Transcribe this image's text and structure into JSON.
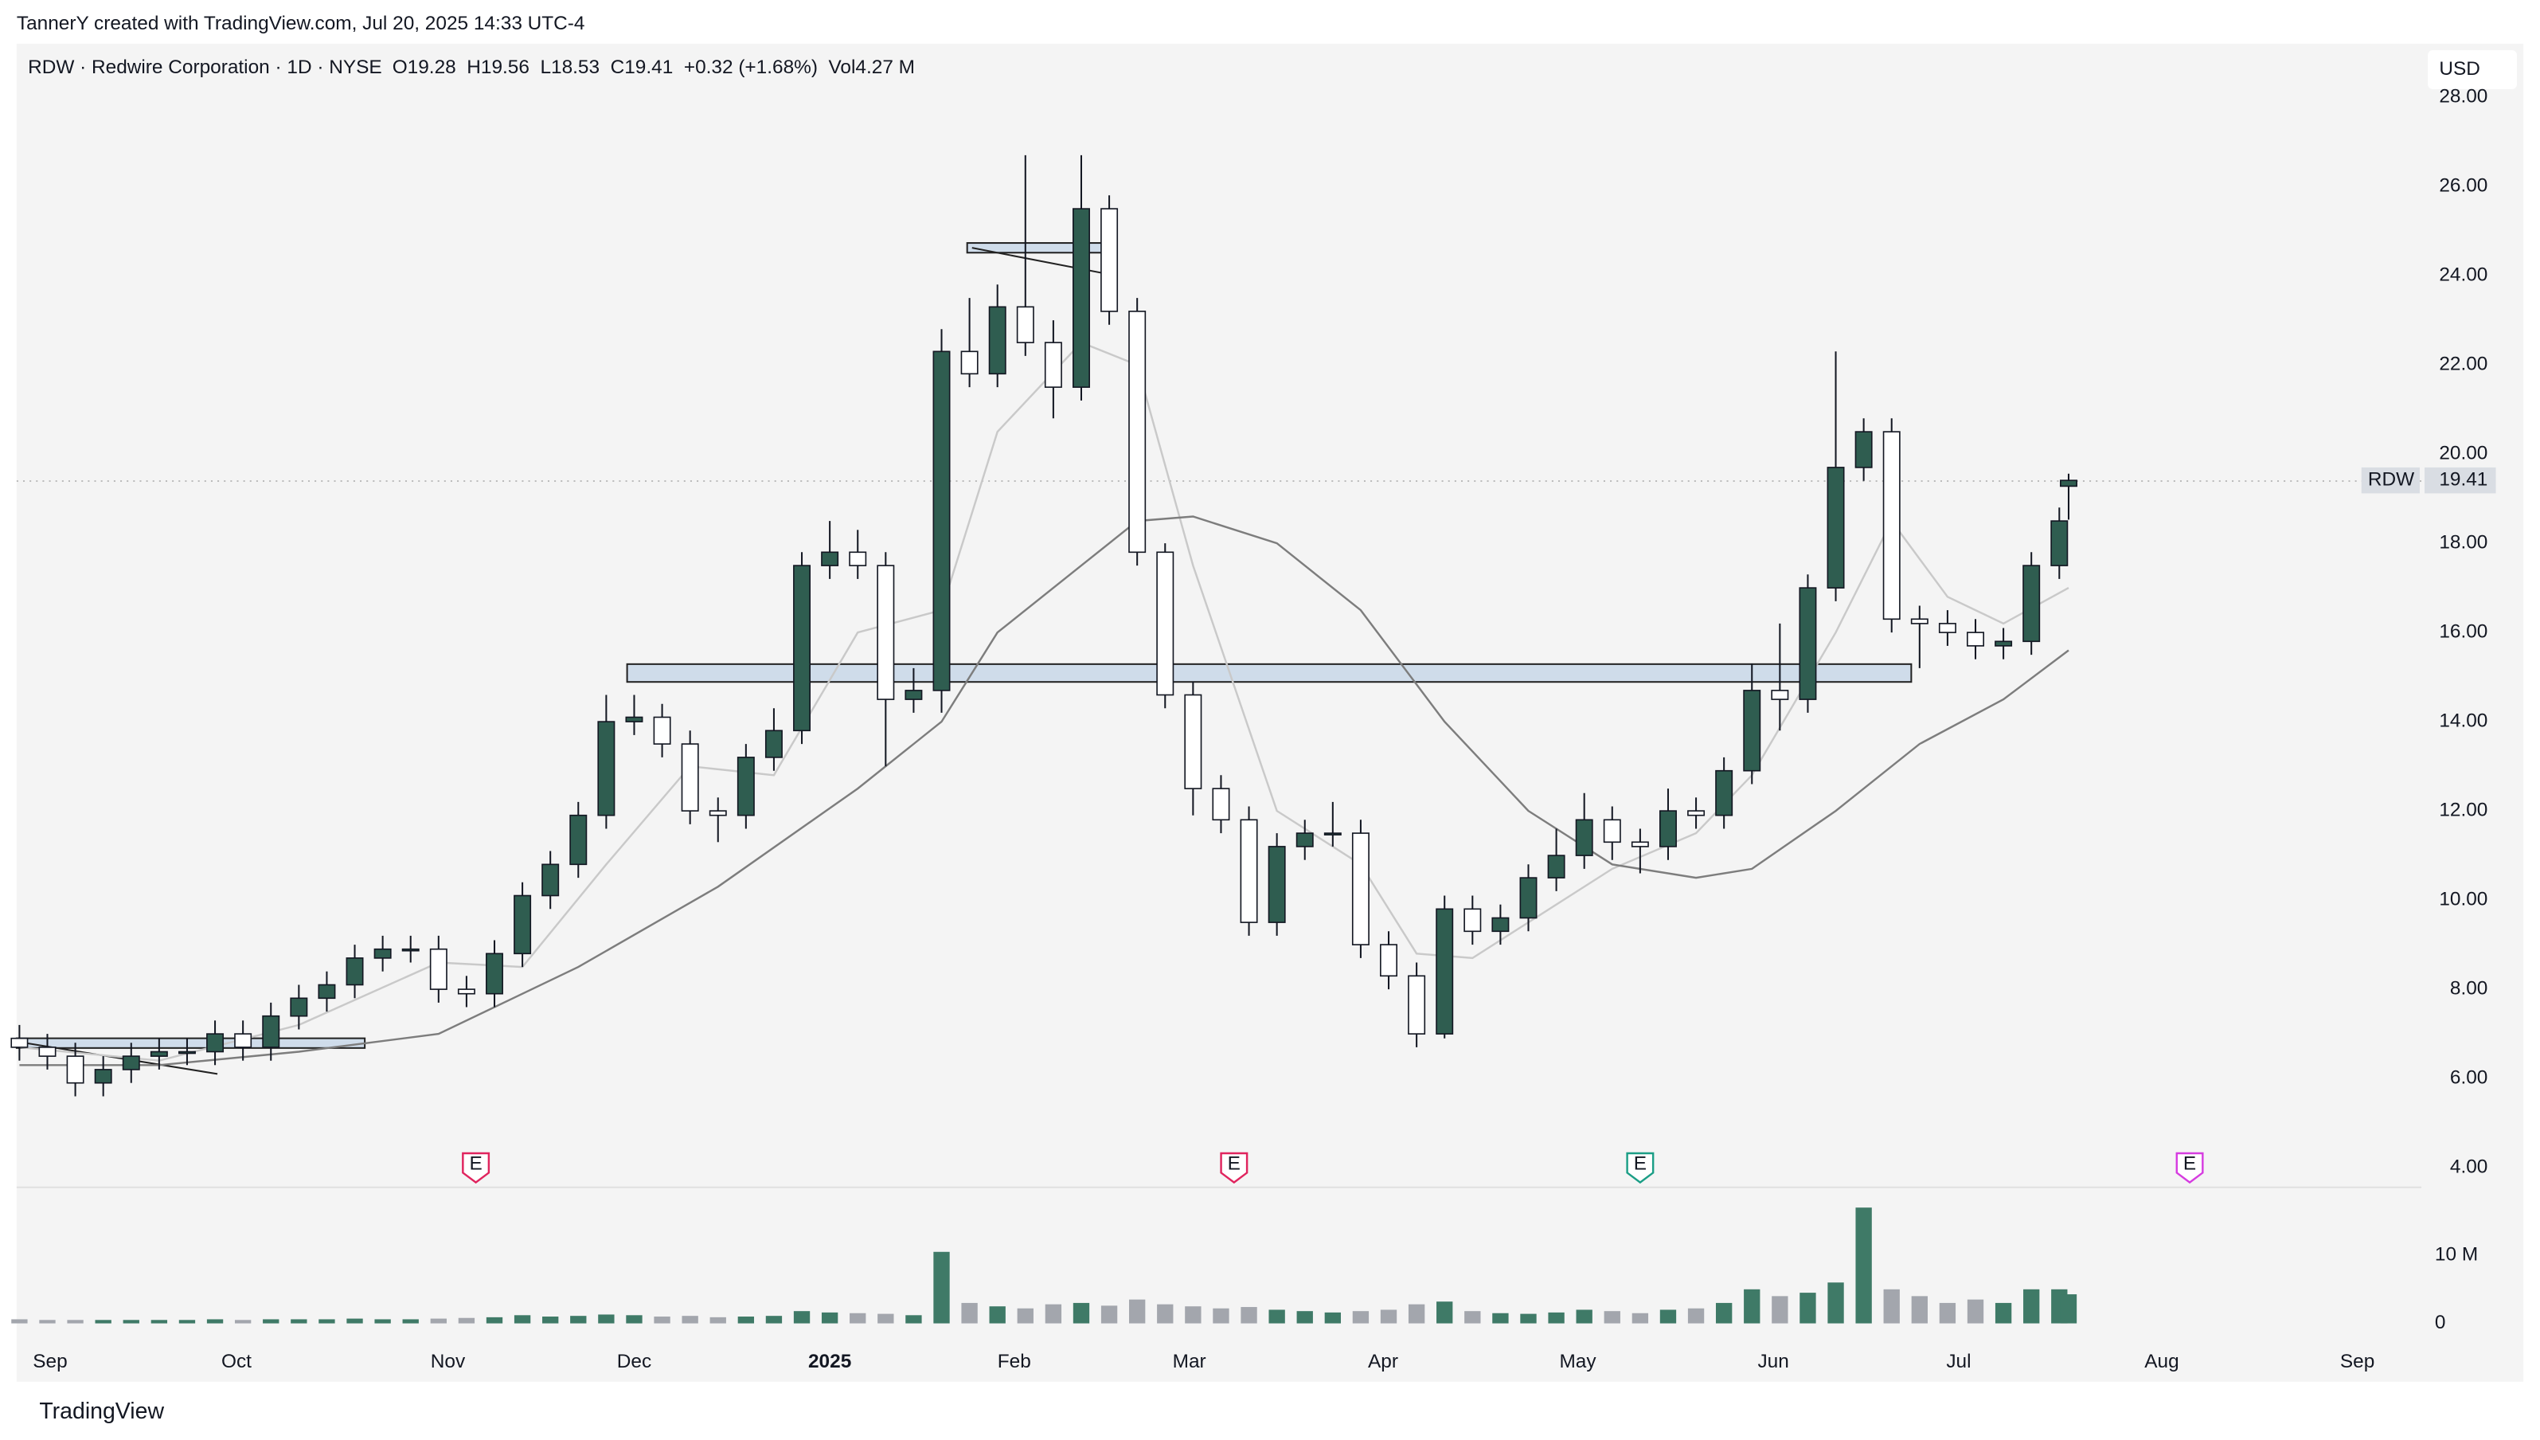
{
  "header": "TannerY created with TradingView.com, Jul 20, 2025 14:33 UTC-4",
  "footer": "TradingView",
  "currency": "USD",
  "symbol_label": "RDW",
  "chart_data": {
    "type": "candlestick",
    "title": "RDW · Redwire Corporation · 1D · NYSE",
    "subtitle": "O19.28  H19.56  L18.53  C19.41  +0.32 (+1.68%)  Vol4.27 M",
    "x": [
      0,
      3,
      6,
      9,
      12,
      15,
      18,
      21,
      24,
      27,
      30,
      33,
      36,
      39,
      42,
      45,
      48,
      51,
      54,
      57,
      60,
      63,
      66,
      69,
      72,
      75,
      78,
      81,
      84,
      87,
      90,
      93,
      96,
      99,
      102,
      105,
      108,
      111,
      114,
      117,
      120,
      123,
      126,
      129,
      132,
      135,
      138,
      141,
      144,
      147,
      150,
      153,
      156,
      159,
      162,
      165,
      168,
      171,
      174,
      177,
      180,
      183,
      186,
      189,
      192,
      195,
      198,
      201,
      204,
      207,
      210,
      213,
      216,
      219,
      220
    ],
    "open": [
      6.9,
      6.7,
      6.5,
      5.9,
      6.2,
      6.5,
      6.6,
      6.6,
      7.0,
      6.7,
      7.4,
      7.8,
      8.1,
      8.7,
      8.9,
      8.9,
      8.0,
      7.9,
      8.8,
      10.1,
      10.8,
      11.9,
      14.0,
      14.1,
      13.5,
      12.0,
      11.9,
      13.2,
      13.8,
      17.5,
      17.8,
      17.5,
      14.5,
      14.7,
      22.3,
      21.8,
      23.3,
      22.5,
      21.5,
      25.5,
      23.2,
      17.8,
      14.6,
      12.5,
      11.8,
      9.5,
      11.2,
      11.5,
      11.5,
      9.0,
      8.3,
      7.0,
      9.8,
      9.3,
      9.6,
      10.5,
      11.0,
      11.8,
      11.3,
      11.2,
      12.0,
      11.9,
      12.9,
      14.7,
      14.5,
      17.0,
      19.7,
      20.5,
      16.3,
      16.2,
      16.0,
      15.7,
      15.8,
      17.5,
      19.28
    ],
    "high": [
      7.2,
      7.0,
      6.8,
      6.5,
      6.8,
      6.9,
      6.9,
      7.3,
      7.3,
      7.7,
      8.1,
      8.4,
      9.0,
      9.2,
      9.2,
      9.2,
      8.3,
      9.1,
      10.4,
      11.1,
      12.2,
      14.6,
      14.6,
      14.4,
      13.8,
      12.3,
      13.5,
      14.3,
      17.8,
      18.5,
      18.3,
      17.8,
      15.2,
      22.8,
      23.5,
      23.8,
      26.7,
      23.0,
      26.7,
      25.8,
      23.5,
      18.0,
      14.9,
      12.8,
      12.1,
      11.5,
      11.8,
      12.2,
      11.8,
      9.3,
      8.6,
      10.1,
      10.1,
      9.9,
      10.8,
      11.6,
      12.4,
      12.1,
      11.6,
      12.5,
      12.3,
      13.2,
      15.3,
      16.2,
      17.3,
      22.3,
      20.8,
      20.8,
      16.6,
      16.5,
      16.3,
      16.1,
      17.8,
      18.8,
      19.56
    ],
    "low": [
      6.4,
      6.2,
      5.6,
      5.6,
      5.9,
      6.2,
      6.3,
      6.3,
      6.4,
      6.4,
      7.1,
      7.5,
      7.8,
      8.4,
      8.6,
      7.7,
      7.6,
      7.6,
      8.5,
      9.8,
      10.5,
      11.6,
      13.7,
      13.2,
      11.7,
      11.3,
      11.6,
      12.9,
      13.5,
      17.2,
      17.2,
      13.0,
      14.2,
      14.2,
      21.5,
      21.5,
      22.2,
      20.8,
      21.2,
      22.9,
      17.5,
      14.3,
      11.9,
      11.5,
      9.2,
      9.2,
      10.9,
      11.2,
      8.7,
      8.0,
      6.7,
      6.9,
      9.0,
      9.0,
      9.3,
      10.2,
      10.7,
      10.9,
      10.6,
      10.9,
      11.6,
      11.6,
      12.6,
      13.8,
      14.2,
      16.7,
      19.4,
      16.0,
      15.2,
      15.7,
      15.4,
      15.4,
      15.5,
      17.2,
      18.53
    ],
    "close": [
      6.7,
      6.5,
      5.9,
      6.2,
      6.5,
      6.6,
      6.6,
      7.0,
      6.7,
      7.4,
      7.8,
      8.1,
      8.7,
      8.9,
      8.9,
      8.0,
      7.9,
      8.8,
      10.1,
      10.8,
      11.9,
      14.0,
      14.1,
      13.5,
      12.0,
      11.9,
      13.2,
      13.8,
      17.5,
      17.8,
      17.5,
      14.5,
      14.7,
      22.3,
      21.8,
      23.3,
      22.5,
      21.5,
      25.5,
      23.2,
      17.8,
      14.6,
      12.5,
      11.8,
      9.5,
      11.2,
      11.5,
      11.5,
      9.0,
      8.3,
      7.0,
      9.8,
      9.3,
      9.6,
      10.5,
      11.0,
      11.8,
      11.3,
      11.2,
      12.0,
      11.9,
      12.9,
      14.7,
      14.5,
      17.0,
      19.7,
      20.5,
      16.3,
      16.2,
      16.0,
      15.7,
      15.8,
      17.5,
      18.5,
      19.41
    ],
    "volume": [
      0.6,
      0.5,
      0.5,
      0.5,
      0.5,
      0.5,
      0.5,
      0.6,
      0.5,
      0.6,
      0.6,
      0.6,
      0.7,
      0.6,
      0.6,
      0.7,
      0.8,
      0.9,
      1.2,
      1.0,
      1.1,
      1.3,
      1.2,
      1.0,
      1.1,
      0.9,
      1.0,
      1.1,
      1.8,
      1.6,
      1.5,
      1.4,
      1.2,
      10.5,
      3.0,
      2.5,
      2.2,
      2.8,
      3.0,
      2.6,
      3.5,
      2.8,
      2.5,
      2.2,
      2.4,
      2.0,
      1.8,
      1.6,
      1.8,
      2.0,
      2.8,
      3.2,
      1.8,
      1.5,
      1.4,
      1.6,
      2.0,
      1.8,
      1.5,
      2.0,
      2.2,
      3.0,
      5.0,
      4.0,
      4.5,
      6.0,
      17.0,
      5.0,
      4.0,
      3.0,
      3.5,
      3.0,
      5.0,
      5.0,
      4.27
    ],
    "up_color": "#2f5d50",
    "down_color": "#ffffff",
    "wick_color": "#131722",
    "volume_up_color": "#3f7a67",
    "volume_down_color": "#a3a6ad",
    "ylim": [
      3.56,
      29.2
    ],
    "yticks": [
      {
        "value": 4,
        "label": "4.00"
      },
      {
        "value": 6,
        "label": "6.00"
      },
      {
        "value": 8,
        "label": "8.00"
      },
      {
        "value": 10,
        "label": "10.00"
      },
      {
        "value": 12,
        "label": "12.00"
      },
      {
        "value": 14,
        "label": "14.00"
      },
      {
        "value": 16,
        "label": "16.00"
      },
      {
        "value": 18,
        "label": "18.00"
      },
      {
        "value": 20,
        "label": "20.00"
      },
      {
        "value": 22,
        "label": "22.00"
      },
      {
        "value": 24,
        "label": "24.00"
      },
      {
        "value": 26,
        "label": "26.00"
      },
      {
        "value": 28,
        "label": "28.00"
      }
    ],
    "xlim": [
      -0.3,
      257
    ],
    "xticks": [
      {
        "value": 3.3,
        "label": "Sep"
      },
      {
        "value": 23.3,
        "label": "Oct"
      },
      {
        "value": 46,
        "label": "Nov"
      },
      {
        "value": 66,
        "label": "Dec"
      },
      {
        "value": 87,
        "label": "2025"
      },
      {
        "value": 106.8,
        "label": "Feb"
      },
      {
        "value": 125.6,
        "label": "Mar"
      },
      {
        "value": 146.4,
        "label": "Apr"
      },
      {
        "value": 167.3,
        "label": "May"
      },
      {
        "value": 188.3,
        "label": "Jun"
      },
      {
        "value": 208.2,
        "label": "Jul"
      },
      {
        "value": 230,
        "label": "Aug"
      },
      {
        "value": 251,
        "label": "Sep"
      }
    ],
    "volume_ylim": [
      0,
      19.5
    ],
    "volume_ticks": [
      0,
      {
        "value": 10,
        "label": "10 M"
      }
    ],
    "moving_averages": [
      {
        "color": "#c9c9c9",
        "x": [
          0,
          15,
          30,
          45,
          54,
          63,
          72,
          81,
          90,
          99,
          105,
          114,
          120,
          126,
          135,
          144,
          150,
          156,
          162,
          171,
          180,
          186,
          195,
          201,
          207,
          213,
          220
        ],
        "values": [
          6.7,
          6.4,
          7.2,
          8.6,
          8.5,
          10.8,
          13.0,
          12.8,
          16.0,
          16.5,
          20.5,
          22.5,
          22.0,
          17.5,
          12.0,
          10.8,
          8.8,
          8.7,
          9.5,
          10.7,
          11.5,
          12.8,
          16.0,
          18.5,
          16.8,
          16.2,
          17.0
        ]
      },
      {
        "color": "#7d7d7d",
        "x": [
          0,
          15,
          30,
          45,
          60,
          75,
          90,
          99,
          105,
          114,
          120,
          126,
          135,
          144,
          153,
          162,
          171,
          180,
          186,
          195,
          204,
          213,
          220
        ],
        "values": [
          6.3,
          6.3,
          6.6,
          7.0,
          8.5,
          10.3,
          12.5,
          14.0,
          16.0,
          17.5,
          18.5,
          18.6,
          18.0,
          16.5,
          14.0,
          12.0,
          10.8,
          10.5,
          10.7,
          12.0,
          13.5,
          14.5,
          15.6
        ]
      }
    ],
    "events": [
      {
        "label": "E",
        "x": 49,
        "color": "#e0245e"
      },
      {
        "label": "E",
        "x": 130.4,
        "color": "#e0245e"
      },
      {
        "label": "E",
        "x": 174,
        "color": "#1b9e86"
      },
      {
        "label": "E",
        "x": 233,
        "color": "#d63ce0"
      }
    ]
  }
}
